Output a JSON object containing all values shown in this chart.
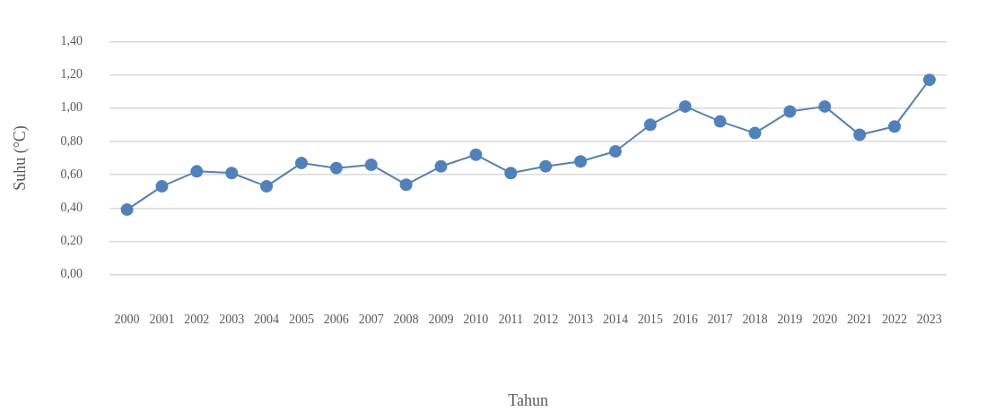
{
  "chart_data": {
    "type": "line",
    "xlabel": "Tahun",
    "ylabel": "Suhu (°C)",
    "categories": [
      "2000",
      "2001",
      "2002",
      "2003",
      "2004",
      "2005",
      "2006",
      "2007",
      "2008",
      "2009",
      "2010",
      "2011",
      "2012",
      "2013",
      "2014",
      "2015",
      "2016",
      "2017",
      "2018",
      "2019",
      "2020",
      "2021",
      "2022",
      "2023"
    ],
    "series": [
      {
        "color": "#4f81bd",
        "values": [
          0.39,
          0.53,
          0.62,
          0.61,
          0.53,
          0.67,
          0.64,
          0.66,
          0.54,
          0.65,
          0.72,
          0.61,
          0.65,
          0.68,
          0.74,
          0.9,
          1.01,
          0.92,
          0.85,
          0.98,
          1.01,
          0.84,
          0.89,
          1.17
        ]
      }
    ],
    "ylim": [
      0,
      1.4
    ],
    "yticks": [
      {
        "value": 0,
        "label": "0,00"
      },
      {
        "value": 0.2,
        "label": "0,20"
      },
      {
        "value": 0.4,
        "label": "0,40"
      },
      {
        "value": 0.6,
        "label": "0,60"
      },
      {
        "value": 0.8,
        "label": "0,80"
      },
      {
        "value": 1,
        "label": "1,00"
      },
      {
        "value": 1.2,
        "label": "1,20"
      },
      {
        "value": 1.4,
        "label": "1,40"
      }
    ],
    "grid": "y",
    "marker": "circle",
    "line_style": "solid",
    "legend": false
  }
}
